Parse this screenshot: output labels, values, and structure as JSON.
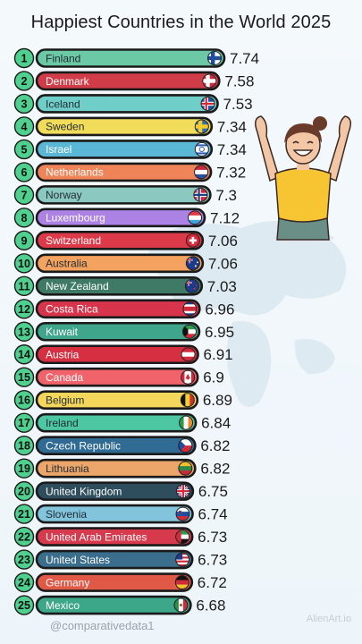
{
  "title": "Happiest Countries in the World 2025",
  "footer_handle": "@comparativedata1",
  "watermark": "AlienArt.io",
  "chart_data": {
    "type": "bar",
    "orientation": "horizontal",
    "title": "Happiest Countries in the World 2025",
    "categories": [
      "Finland",
      "Denmark",
      "Iceland",
      "Sweden",
      "Israel",
      "Netherlands",
      "Norway",
      "Luxembourg",
      "Switzerland",
      "Australia",
      "New Zealand",
      "Costa Rica",
      "Kuwait",
      "Austria",
      "Canada",
      "Belgium",
      "Ireland",
      "Czech Republic",
      "Lithuania",
      "United Kingdom",
      "Slovenia",
      "United Arab Emirates",
      "United States",
      "Germany",
      "Mexico"
    ],
    "ranks": [
      "1",
      "2",
      "3",
      "4",
      "5",
      "6",
      "7",
      "8",
      "9",
      "10",
      "11",
      "12",
      "13",
      "14",
      "15",
      "16",
      "17",
      "18",
      "19",
      "20",
      "21",
      "22",
      "23",
      "24",
      "25"
    ],
    "values": [
      7.74,
      7.58,
      7.53,
      7.34,
      7.34,
      7.32,
      7.3,
      7.12,
      7.06,
      7.06,
      7.03,
      6.96,
      6.95,
      6.91,
      6.9,
      6.89,
      6.84,
      6.82,
      6.82,
      6.75,
      6.74,
      6.73,
      6.73,
      6.72,
      6.68
    ],
    "value_labels": [
      "7.74",
      "7.58",
      "7.53",
      "7.34",
      "7.34",
      "7.32",
      "7.3",
      "7.12",
      "7.06",
      "7.06",
      "7.03",
      "6.96",
      "6.95",
      "6.91",
      "6.9",
      "6.89",
      "6.84",
      "6.82",
      "6.82",
      "6.75",
      "6.74",
      "6.73",
      "6.73",
      "6.72",
      "6.68"
    ],
    "colors": [
      "#6cc9a6",
      "#d03c48",
      "#6fcfc8",
      "#f2dd5b",
      "#5bb7d6",
      "#ee8458",
      "#8bc8bf",
      "#ac83e4",
      "#dc3a48",
      "#f3a35f",
      "#3f7a66",
      "#d8344c",
      "#3fa58b",
      "#d72f42",
      "#f0636b",
      "#f4d65a",
      "#4cc7a2",
      "#2f6b93",
      "#eda66a",
      "#2e4e5e",
      "#82c4dc",
      "#d73a4c",
      "#3b6d8c",
      "#e05846",
      "#3da889"
    ],
    "flags": [
      "fi",
      "dk",
      "is",
      "se",
      "il",
      "nl",
      "no",
      "lu",
      "ch",
      "au",
      "nz",
      "cr",
      "kw",
      "at",
      "ca",
      "be",
      "ie",
      "cz",
      "lt",
      "gb",
      "si",
      "ae",
      "us",
      "de",
      "mx"
    ]
  }
}
